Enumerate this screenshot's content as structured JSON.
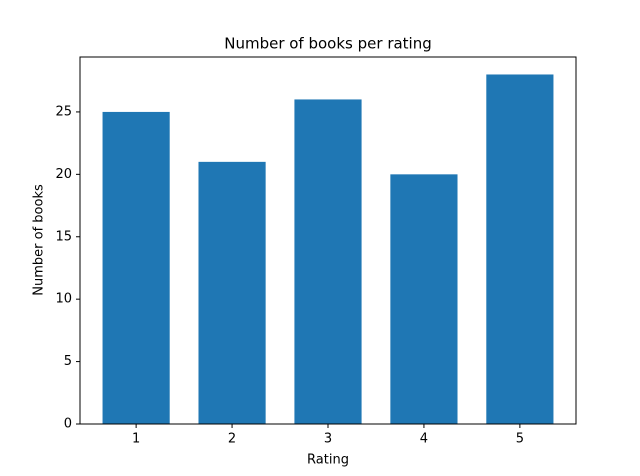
{
  "chart_data": {
    "type": "bar",
    "title": "Number of books per rating",
    "x": [
      1,
      2,
      3,
      4,
      5
    ],
    "values": [
      25,
      21,
      26,
      20,
      28
    ],
    "color": "#1f77b4",
    "xlabel": "Rating",
    "ylabel": "Number of books",
    "xlim": [
      0.415,
      5.585
    ],
    "xticks": [
      1,
      2,
      3,
      4,
      5
    ],
    "ylim": [
      0,
      29.4
    ],
    "yticks": [
      0,
      5,
      10,
      15,
      20,
      25
    ]
  }
}
